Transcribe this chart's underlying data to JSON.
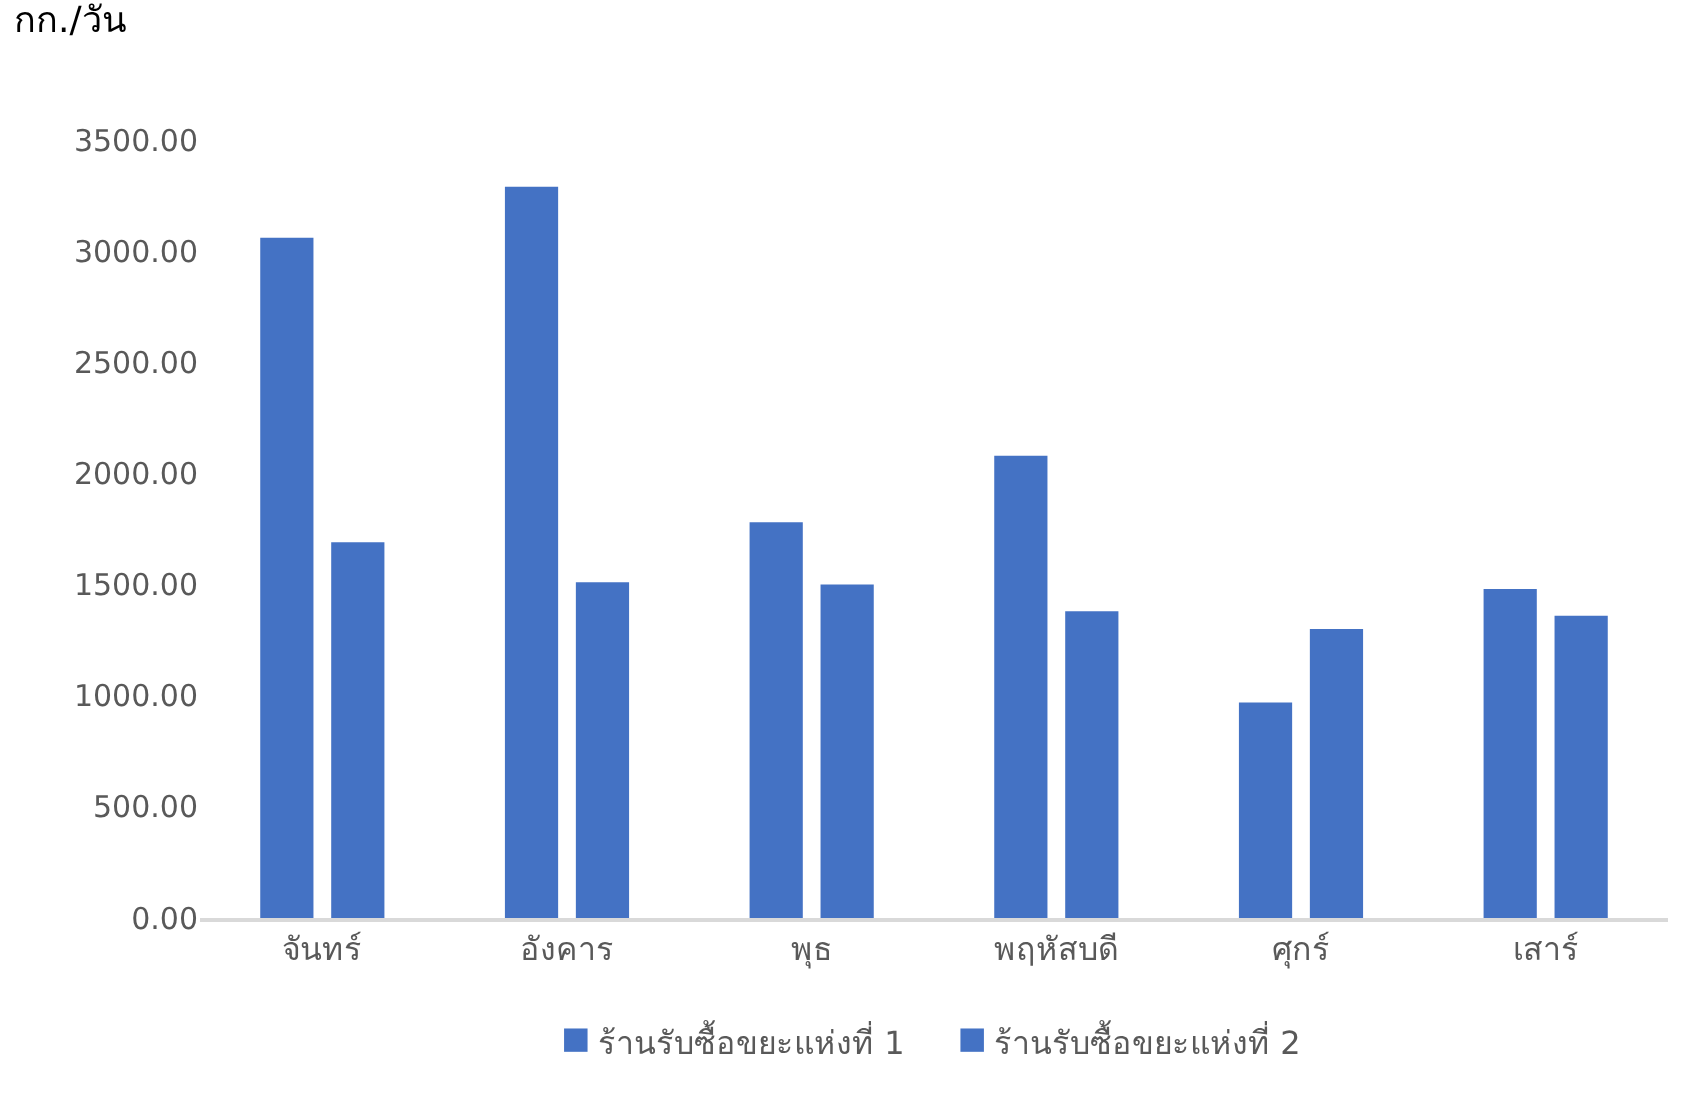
{
  "chart_data": {
    "type": "bar",
    "ylabel": "กก./วัน",
    "categories": [
      "จันทร์",
      "อังคาร",
      "พุธ",
      "พฤหัสบดี",
      "ศุกร์",
      "เสาร์"
    ],
    "series": [
      {
        "name": "ร้านรับซื้อขยะแห่งที่ 1",
        "color": "#4472c4",
        "values": [
          3060,
          3290,
          1780,
          2080,
          970,
          1480
        ]
      },
      {
        "name": "ร้านรับซื้อขยะแห่งที่ 2",
        "color": "#4472c4",
        "values": [
          1690,
          1510,
          1500,
          1380,
          1300,
          1360
        ]
      }
    ],
    "ylim": [
      0,
      3500
    ],
    "yticks": [
      {
        "value": 0,
        "label": "0.00"
      },
      {
        "value": 500,
        "label": "500.00"
      },
      {
        "value": 1000,
        "label": "1000.00"
      },
      {
        "value": 1500,
        "label": "1500.00"
      },
      {
        "value": 2000,
        "label": "2000.00"
      },
      {
        "value": 2500,
        "label": "2500.00"
      },
      {
        "value": 3000,
        "label": "3000.00"
      },
      {
        "value": 3500,
        "label": "3500.00"
      }
    ],
    "grid": false,
    "legend": "bottom"
  }
}
